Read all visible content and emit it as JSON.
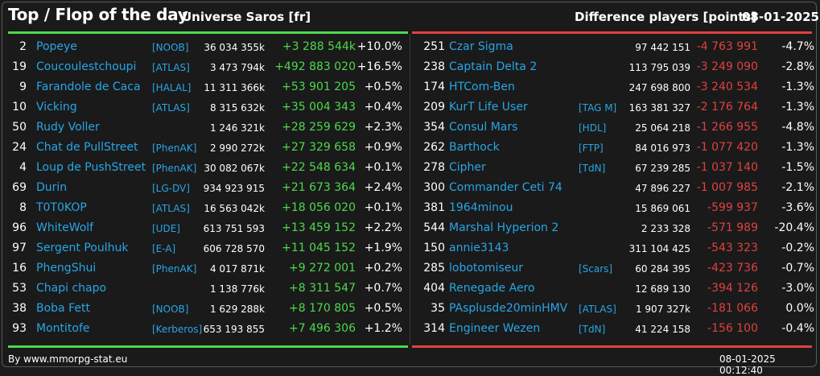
{
  "header": {
    "title": "Top / Flop of the day",
    "universe": "Universe Saros [fr]",
    "difference_label": "Difference players [points]",
    "date": "08-01-2025"
  },
  "colors": {
    "top_accent": "#4cd94c",
    "flop_accent": "#e0413f",
    "name_color": "#27a6e6"
  },
  "top": [
    {
      "rank": "2",
      "name": "Popeye",
      "alliance": "[NOOB]",
      "points": "36 034 355k",
      "delta": "+3 288 544k",
      "pct": "+10.0%"
    },
    {
      "rank": "19",
      "name": "Coucoulestchoupi",
      "alliance": "[ATLAS]",
      "points": "3 473 794k",
      "delta": "+492 883 020",
      "pct": "+16.5%"
    },
    {
      "rank": "9",
      "name": "Farandole de Caca",
      "alliance": "[HALAL]",
      "points": "11 311 366k",
      "delta": "+53 901 205",
      "pct": "+0.5%"
    },
    {
      "rank": "10",
      "name": "Vicking",
      "alliance": "[ATLAS]",
      "points": "8 315 632k",
      "delta": "+35 004 343",
      "pct": "+0.4%"
    },
    {
      "rank": "50",
      "name": "Rudy Voller",
      "alliance": "",
      "points": "1 246 321k",
      "delta": "+28 259 629",
      "pct": "+2.3%"
    },
    {
      "rank": "24",
      "name": "Chat de PullStreet",
      "alliance": "[PhenAK]",
      "points": "2 990 272k",
      "delta": "+27 329 658",
      "pct": "+0.9%"
    },
    {
      "rank": "4",
      "name": "Loup de PushStreet",
      "alliance": "[PhenAK]",
      "points": "30 082 067k",
      "delta": "+22 548 634",
      "pct": "+0.1%"
    },
    {
      "rank": "69",
      "name": "Durin",
      "alliance": "[LG-DV]",
      "points": "934 923 915",
      "delta": "+21 673 364",
      "pct": "+2.4%"
    },
    {
      "rank": "8",
      "name": "T0T0KOP",
      "alliance": "[ATLAS]",
      "points": "16 563 042k",
      "delta": "+18 056 020",
      "pct": "+0.1%"
    },
    {
      "rank": "96",
      "name": "WhiteWolf",
      "alliance": "[UDE]",
      "points": "613 751 593",
      "delta": "+13 459 152",
      "pct": "+2.2%"
    },
    {
      "rank": "97",
      "name": "Sergent Poulhuk",
      "alliance": "[E-A]",
      "points": "606 728 570",
      "delta": "+11 045 152",
      "pct": "+1.9%"
    },
    {
      "rank": "16",
      "name": "PhengShui",
      "alliance": "[PhenAK]",
      "points": "4 017 871k",
      "delta": "+9 272 001",
      "pct": "+0.2%"
    },
    {
      "rank": "53",
      "name": "Chapi chapo",
      "alliance": "",
      "points": "1 138 776k",
      "delta": "+8 311 547",
      "pct": "+0.7%"
    },
    {
      "rank": "38",
      "name": "Boba Fett",
      "alliance": "[NOOB]",
      "points": "1 629 288k",
      "delta": "+8 170 805",
      "pct": "+0.5%"
    },
    {
      "rank": "93",
      "name": "Montitofe",
      "alliance": "[Kerberos]",
      "points": "653 193 855",
      "delta": "+7 496 306",
      "pct": "+1.2%"
    }
  ],
  "flop": [
    {
      "rank": "251",
      "name": "Czar Sigma",
      "alliance": "",
      "points": "97 442 151",
      "delta": "-4 763 991",
      "pct": "-4.7%"
    },
    {
      "rank": "238",
      "name": "Captain Delta 2",
      "alliance": "",
      "points": "113 795 039",
      "delta": "-3 249 090",
      "pct": "-2.8%"
    },
    {
      "rank": "174",
      "name": "HTCom-Ben",
      "alliance": "",
      "points": "247 698 800",
      "delta": "-3 240 534",
      "pct": "-1.3%"
    },
    {
      "rank": "209",
      "name": "KurT Life User",
      "alliance": "[TAG M]",
      "points": "163 381 327",
      "delta": "-2 176 764",
      "pct": "-1.3%"
    },
    {
      "rank": "354",
      "name": "Consul Mars",
      "alliance": "[HDL]",
      "points": "25 064 218",
      "delta": "-1 266 955",
      "pct": "-4.8%"
    },
    {
      "rank": "262",
      "name": "Barthock",
      "alliance": "[FTP]",
      "points": "84 016 973",
      "delta": "-1 077 420",
      "pct": "-1.3%"
    },
    {
      "rank": "278",
      "name": "Cipher",
      "alliance": "[TdN]",
      "points": "67 239 285",
      "delta": "-1 037 140",
      "pct": "-1.5%"
    },
    {
      "rank": "300",
      "name": "Commander Ceti 74",
      "alliance": "",
      "points": "47 896 227",
      "delta": "-1 007 985",
      "pct": "-2.1%"
    },
    {
      "rank": "381",
      "name": "1964minou",
      "alliance": "",
      "points": "15 869 061",
      "delta": "-599 937",
      "pct": "-3.6%"
    },
    {
      "rank": "544",
      "name": "Marshal Hyperion 2",
      "alliance": "",
      "points": "2 233 328",
      "delta": "-571 989",
      "pct": "-20.4%"
    },
    {
      "rank": "150",
      "name": "annie3143",
      "alliance": "",
      "points": "311 104 425",
      "delta": "-543 323",
      "pct": "-0.2%"
    },
    {
      "rank": "285",
      "name": "lobotomiseur",
      "alliance": "[Scars]",
      "points": "60 284 395",
      "delta": "-423 736",
      "pct": "-0.7%"
    },
    {
      "rank": "404",
      "name": "Renegade Aero",
      "alliance": "",
      "points": "12 689 130",
      "delta": "-394 126",
      "pct": "-3.0%"
    },
    {
      "rank": "35",
      "name": "PAsplusde20minHMV",
      "alliance": "[ATLAS]",
      "points": "1 907 327k",
      "delta": "-181 066",
      "pct": "0.0%"
    },
    {
      "rank": "314",
      "name": "Engineer Wezen",
      "alliance": "[TdN]",
      "points": "41 224 158",
      "delta": "-156 100",
      "pct": "-0.4%"
    }
  ],
  "footer": {
    "source": "By www.mmorpg-stat.eu",
    "timestamp": "08-01-2025 00:12:40"
  }
}
